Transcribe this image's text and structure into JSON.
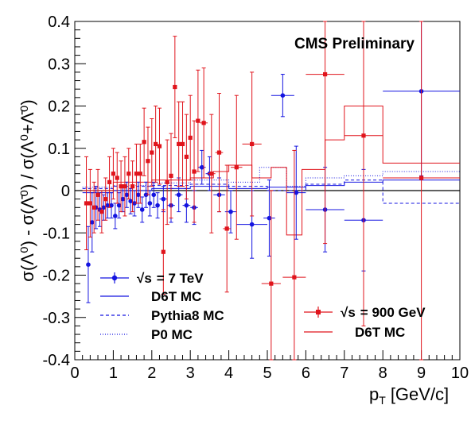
{
  "chart_data": {
    "type": "scatter",
    "title": "",
    "annotation": "CMS Preliminary",
    "xlabel": "p",
    "xlabel_sub": "T",
    "xlabel_unit": "[GeV/c]",
    "ylabel_text": "σ(Λ⁰) - σ(Λ̄⁰) / σ(Λ⁰+Λ̄⁰)",
    "xlim": [
      0,
      10
    ],
    "ylim": [
      -0.4,
      0.4
    ],
    "xticks": [
      "0",
      "1",
      "2",
      "3",
      "4",
      "5",
      "6",
      "7",
      "8",
      "9",
      "10"
    ],
    "yticks": [
      "-0.4",
      "-0.3",
      "-0.2",
      "-0.1",
      "0",
      "0.1",
      "0.2",
      "0.3",
      "0.4"
    ],
    "reference_line_y": 0,
    "grid": false,
    "legend_entries": {
      "s7_prefix": "√s",
      "s7_suffix": "= 7 TeV",
      "d6t_7": "D6T MC",
      "pythia8": "Pythia8 MC",
      "p0": "P0 MC",
      "s900_prefix": "√s",
      "s900_suffix": "= 900 GeV",
      "d6t_900": "D6T MC"
    },
    "colors": {
      "data_7tev": "#1414e0",
      "data_900gev": "#e0141c",
      "axis": "#000000"
    },
    "series": [
      {
        "id": "data_7tev",
        "marker": "circle",
        "points": [
          {
            "x": 0.35,
            "xerr": 0.05,
            "y": -0.175,
            "yerr": 0.09
          },
          {
            "x": 0.45,
            "xerr": 0.05,
            "y": -0.075,
            "yerr": 0.07
          },
          {
            "x": 0.55,
            "xerr": 0.05,
            "y": -0.04,
            "yerr": 0.05
          },
          {
            "x": 0.65,
            "xerr": 0.05,
            "y": -0.045,
            "yerr": 0.04
          },
          {
            "x": 0.75,
            "xerr": 0.05,
            "y": -0.04,
            "yerr": 0.03
          },
          {
            "x": 0.85,
            "xerr": 0.05,
            "y": -0.035,
            "yerr": 0.03
          },
          {
            "x": 0.95,
            "xerr": 0.05,
            "y": -0.035,
            "yerr": 0.03
          },
          {
            "x": 1.05,
            "xerr": 0.05,
            "y": -0.06,
            "yerr": 0.03
          },
          {
            "x": 1.15,
            "xerr": 0.05,
            "y": -0.035,
            "yerr": 0.03
          },
          {
            "x": 1.25,
            "xerr": 0.05,
            "y": -0.02,
            "yerr": 0.03
          },
          {
            "x": 1.35,
            "xerr": 0.05,
            "y": -0.01,
            "yerr": 0.03
          },
          {
            "x": 1.45,
            "xerr": 0.05,
            "y": -0.025,
            "yerr": 0.03
          },
          {
            "x": 1.55,
            "xerr": 0.05,
            "y": -0.03,
            "yerr": 0.03
          },
          {
            "x": 1.65,
            "xerr": 0.05,
            "y": -0.01,
            "yerr": 0.03
          },
          {
            "x": 1.75,
            "xerr": 0.05,
            "y": -0.045,
            "yerr": 0.03
          },
          {
            "x": 1.85,
            "xerr": 0.05,
            "y": -0.01,
            "yerr": 0.03
          },
          {
            "x": 1.95,
            "xerr": 0.05,
            "y": -0.03,
            "yerr": 0.03
          },
          {
            "x": 2.05,
            "xerr": 0.05,
            "y": -0.01,
            "yerr": 0.03
          },
          {
            "x": 2.15,
            "xerr": 0.05,
            "y": -0.035,
            "yerr": 0.03
          },
          {
            "x": 2.3,
            "xerr": 0.1,
            "y": -0.02,
            "yerr": 0.03
          },
          {
            "x": 2.5,
            "xerr": 0.1,
            "y": -0.035,
            "yerr": 0.04
          },
          {
            "x": 2.7,
            "xerr": 0.1,
            "y": -0.01,
            "yerr": 0.04
          },
          {
            "x": 2.9,
            "xerr": 0.1,
            "y": -0.035,
            "yerr": 0.04
          },
          {
            "x": 3.1,
            "xerr": 0.1,
            "y": -0.04,
            "yerr": 0.04
          },
          {
            "x": 3.3,
            "xerr": 0.1,
            "y": 0.055,
            "yerr": 0.04
          },
          {
            "x": 3.5,
            "xerr": 0.1,
            "y": 0.04,
            "yerr": 0.04
          },
          {
            "x": 3.75,
            "xerr": 0.15,
            "y": -0.01,
            "yerr": 0.04
          },
          {
            "x": 4.05,
            "xerr": 0.15,
            "y": -0.05,
            "yerr": 0.05
          },
          {
            "x": 4.6,
            "xerr": 0.4,
            "y": -0.08,
            "yerr": 0.08
          },
          {
            "x": 5.4,
            "xerr": 0.3,
            "y": 0.225,
            "yerr": 0.05
          },
          {
            "x": 5.05,
            "xerr": 0.15,
            "y": -0.065,
            "yerr": 0.09
          },
          {
            "x": 5.75,
            "xerr": 0.25,
            "y": -0.005,
            "yerr": 0.11
          },
          {
            "x": 6.5,
            "xerr": 0.5,
            "y": -0.045,
            "yerr": 0.1
          },
          {
            "x": 7.5,
            "xerr": 0.5,
            "y": -0.07,
            "yerr": 0.12
          },
          {
            "x": 9.0,
            "xerr": 1.0,
            "y": 0.235,
            "yerr": 0.2
          }
        ]
      },
      {
        "id": "data_900gev",
        "marker": "square",
        "points": [
          {
            "x": 0.3,
            "xerr": 0.05,
            "y": -0.03,
            "yerr": 0.11
          },
          {
            "x": 0.4,
            "xerr": 0.05,
            "y": -0.03,
            "yerr": 0.08
          },
          {
            "x": 0.5,
            "xerr": 0.05,
            "y": -0.04,
            "yerr": 0.06
          },
          {
            "x": 0.6,
            "xerr": 0.05,
            "y": -0.01,
            "yerr": 0.06
          },
          {
            "x": 0.7,
            "xerr": 0.05,
            "y": -0.05,
            "yerr": 0.05
          },
          {
            "x": 0.8,
            "xerr": 0.05,
            "y": -0.02,
            "yerr": 0.05
          },
          {
            "x": 0.9,
            "xerr": 0.05,
            "y": 0.02,
            "yerr": 0.06
          },
          {
            "x": 1.0,
            "xerr": 0.05,
            "y": 0.04,
            "yerr": 0.06
          },
          {
            "x": 1.1,
            "xerr": 0.05,
            "y": 0.03,
            "yerr": 0.06
          },
          {
            "x": 1.2,
            "xerr": 0.05,
            "y": 0.01,
            "yerr": 0.06
          },
          {
            "x": 1.3,
            "xerr": 0.05,
            "y": 0.01,
            "yerr": 0.07
          },
          {
            "x": 1.4,
            "xerr": 0.05,
            "y": 0.04,
            "yerr": 0.06
          },
          {
            "x": 1.5,
            "xerr": 0.05,
            "y": 0.01,
            "yerr": 0.06
          },
          {
            "x": 1.6,
            "xerr": 0.05,
            "y": 0.04,
            "yerr": 0.07
          },
          {
            "x": 1.7,
            "xerr": 0.05,
            "y": 0.04,
            "yerr": 0.07
          },
          {
            "x": 1.8,
            "xerr": 0.05,
            "y": 0.115,
            "yerr": 0.08
          },
          {
            "x": 1.9,
            "xerr": 0.05,
            "y": 0.07,
            "yerr": 0.08
          },
          {
            "x": 2.0,
            "xerr": 0.05,
            "y": 0.09,
            "yerr": 0.08
          },
          {
            "x": 2.1,
            "xerr": 0.05,
            "y": 0.11,
            "yerr": 0.09
          },
          {
            "x": 2.2,
            "xerr": 0.05,
            "y": 0.105,
            "yerr": 0.09
          },
          {
            "x": 2.3,
            "xerr": 0.05,
            "y": -0.145,
            "yerr": 0.1
          },
          {
            "x": 2.4,
            "xerr": 0.05,
            "y": 0.02,
            "yerr": 0.1
          },
          {
            "x": 2.5,
            "xerr": 0.05,
            "y": 0.035,
            "yerr": 0.1
          },
          {
            "x": 2.6,
            "xerr": 0.05,
            "y": 0.245,
            "yerr": 0.12
          },
          {
            "x": 2.7,
            "xerr": 0.05,
            "y": 0.11,
            "yerr": 0.1
          },
          {
            "x": 2.8,
            "xerr": 0.05,
            "y": 0.11,
            "yerr": 0.1
          },
          {
            "x": 2.9,
            "xerr": 0.05,
            "y": 0.08,
            "yerr": 0.1
          },
          {
            "x": 3.0,
            "xerr": 0.05,
            "y": 0.125,
            "yerr": 0.1
          },
          {
            "x": 3.1,
            "xerr": 0.05,
            "y": 0.045,
            "yerr": 0.12
          },
          {
            "x": 3.2,
            "xerr": 0.05,
            "y": 0.165,
            "yerr": 0.12
          },
          {
            "x": 3.35,
            "xerr": 0.1,
            "y": 0.16,
            "yerr": 0.13
          },
          {
            "x": 3.55,
            "xerr": 0.1,
            "y": 0.04,
            "yerr": 0.14
          },
          {
            "x": 3.75,
            "xerr": 0.1,
            "y": 0.09,
            "yerr": 0.14
          },
          {
            "x": 3.95,
            "xerr": 0.1,
            "y": -0.09,
            "yerr": 0.15
          },
          {
            "x": 4.2,
            "xerr": 0.15,
            "y": 0.055,
            "yerr": 0.17
          },
          {
            "x": 4.6,
            "xerr": 0.25,
            "y": 0.11,
            "yerr": 0.17
          },
          {
            "x": 5.1,
            "xerr": 0.25,
            "y": -0.22,
            "yerr": 0.22
          },
          {
            "x": 5.7,
            "xerr": 0.3,
            "y": -0.205,
            "yerr": 0.3
          },
          {
            "x": 6.5,
            "xerr": 0.5,
            "y": 0.275,
            "yerr": 0.4
          },
          {
            "x": 7.5,
            "xerr": 0.5,
            "y": 0.13,
            "yerr": 0.45
          },
          {
            "x": 9.0,
            "xerr": 1.0,
            "y": 0.03,
            "yerr": 0.5
          }
        ]
      }
    ],
    "mc_histograms": [
      {
        "id": "d6t_7",
        "color": "#1414e0",
        "style": "solid",
        "bins": [
          [
            0.2,
            1,
            -0.005
          ],
          [
            1,
            2,
            0.0
          ],
          [
            2,
            3,
            0.005
          ],
          [
            3,
            4,
            0.01
          ],
          [
            4,
            5,
            0.005
          ],
          [
            5,
            6,
            0.008
          ],
          [
            6,
            7,
            0.012
          ],
          [
            7,
            8,
            0.02
          ],
          [
            8,
            10,
            0.025
          ]
        ]
      },
      {
        "id": "pythia8",
        "color": "#1414e0",
        "style": "dashed",
        "bins": [
          [
            0.2,
            1,
            0.005
          ],
          [
            1,
            2,
            0.01
          ],
          [
            2,
            3,
            0.012
          ],
          [
            3,
            4,
            0.015
          ],
          [
            4,
            5,
            0.01
          ],
          [
            5,
            6,
            0.0
          ],
          [
            6,
            7,
            0.015
          ],
          [
            7,
            8,
            0.025
          ],
          [
            8,
            10,
            -0.03
          ]
        ]
      },
      {
        "id": "p0",
        "color": "#1414e0",
        "style": "dotted",
        "bins": [
          [
            0.2,
            1,
            0.008
          ],
          [
            1,
            2,
            0.012
          ],
          [
            2,
            3,
            0.018
          ],
          [
            3,
            4,
            0.025
          ],
          [
            4,
            4.8,
            0.02
          ],
          [
            4.8,
            5.5,
            0.055
          ],
          [
            5.5,
            6,
            0.01
          ],
          [
            6,
            7,
            0.03
          ],
          [
            7,
            8,
            0.035
          ],
          [
            8,
            10,
            0.045
          ]
        ]
      },
      {
        "id": "d6t_900",
        "color": "#e0141c",
        "style": "solid",
        "bins": [
          [
            0.2,
            1,
            0.0
          ],
          [
            1,
            2,
            0.02
          ],
          [
            2,
            3,
            0.025
          ],
          [
            3,
            3.6,
            0.03
          ],
          [
            3.6,
            4,
            0.045
          ],
          [
            4,
            4.6,
            0.06
          ],
          [
            4.6,
            5.1,
            0.03
          ],
          [
            5.1,
            5.5,
            0.055
          ],
          [
            5.5,
            5.9,
            -0.105
          ],
          [
            5.9,
            6.5,
            0.05
          ],
          [
            6.5,
            7,
            0.12
          ],
          [
            7,
            8,
            0.2
          ],
          [
            8,
            10,
            0.065
          ]
        ]
      }
    ]
  }
}
